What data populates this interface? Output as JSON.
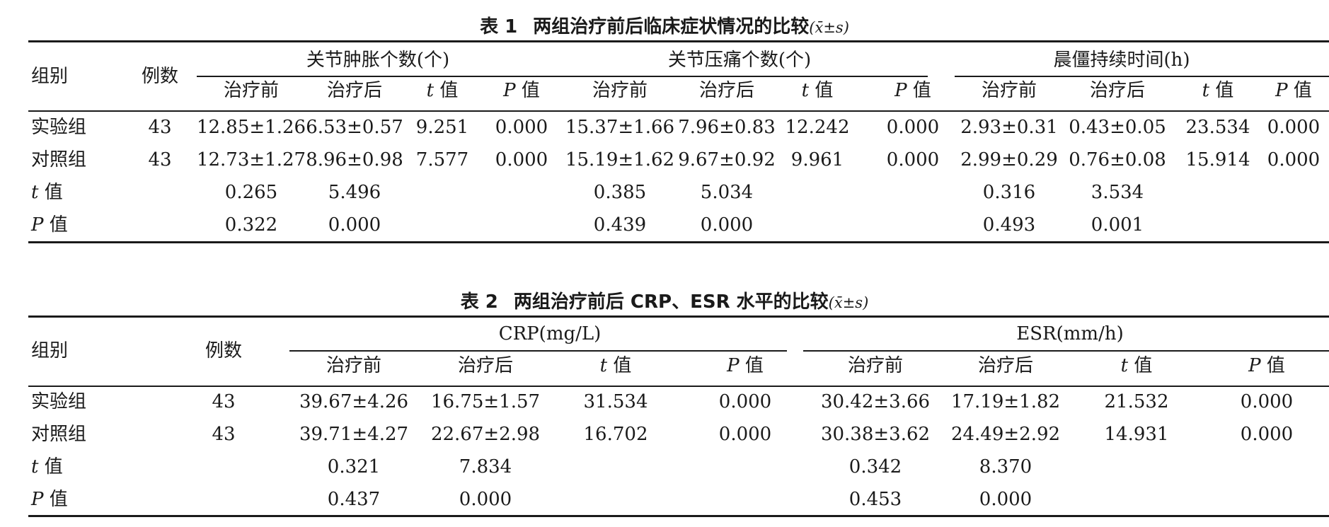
{
  "table1": {
    "number": "表 1",
    "title": "两组治疗前后临床症状情况的比较",
    "stat_notation": "(x̄±s)",
    "col_group": "组别",
    "col_n": "例数",
    "span1": "关节肿胀个数(个)",
    "span2": "关节压痛个数(个)",
    "span3": "晨僵持续时间(h)",
    "sub_before": "治疗前",
    "sub_after": "治疗后",
    "sub_t": "t 值",
    "sub_p": "P 值",
    "rows": [
      {
        "label": "实验组",
        "n": "43",
        "v": [
          "12.85±1.26",
          "6.53±0.57",
          "9.251",
          "0.000",
          "15.37±1.66",
          "7.96±0.83",
          "12.242",
          "0.000",
          "2.93±0.31",
          "0.43±0.05",
          "23.534",
          "0.000"
        ]
      },
      {
        "label": "对照组",
        "n": "43",
        "v": [
          "12.73±1.27",
          "8.96±0.98",
          "7.577",
          "0.000",
          "15.19±1.62",
          "9.67±0.92",
          "9.961",
          "0.000",
          "2.99±0.29",
          "0.76±0.08",
          "15.914",
          "0.000"
        ]
      },
      {
        "label": "t 值",
        "n": "",
        "v": [
          "0.265",
          "5.496",
          "",
          "",
          "0.385",
          "5.034",
          "",
          "",
          "0.316",
          "3.534",
          "",
          ""
        ]
      },
      {
        "label": "P 值",
        "n": "",
        "v": [
          "0.322",
          "0.000",
          "",
          "",
          "0.439",
          "0.000",
          "",
          "",
          "0.493",
          "0.001",
          "",
          ""
        ]
      }
    ]
  },
  "table2": {
    "number": "表 2",
    "title": "两组治疗前后 CRP、ESR 水平的比较",
    "stat_notation": "(x̄±s)",
    "col_group": "组别",
    "col_n": "例数",
    "span1": "CRP(mg/L)",
    "span2": "ESR(mm/h)",
    "sub_before": "治疗前",
    "sub_after": "治疗后",
    "sub_t": "t 值",
    "sub_p": "P 值",
    "rows": [
      {
        "label": "实验组",
        "n": "43",
        "v": [
          "39.67±4.26",
          "16.75±1.57",
          "31.534",
          "0.000",
          "30.42±3.66",
          "17.19±1.82",
          "21.532",
          "0.000"
        ]
      },
      {
        "label": "对照组",
        "n": "43",
        "v": [
          "39.71±4.27",
          "22.67±2.98",
          "16.702",
          "0.000",
          "30.38±3.62",
          "24.49±2.92",
          "14.931",
          "0.000"
        ]
      },
      {
        "label": "t 值",
        "n": "",
        "v": [
          "0.321",
          "7.834",
          "",
          "",
          "0.342",
          "8.370",
          "",
          ""
        ]
      },
      {
        "label": "P 值",
        "n": "",
        "v": [
          "0.437",
          "0.000",
          "",
          "",
          "0.453",
          "0.000",
          "",
          ""
        ]
      }
    ]
  }
}
